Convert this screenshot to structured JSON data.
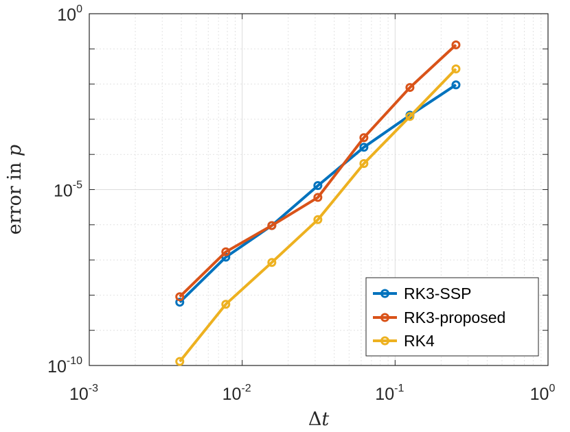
{
  "chart_data": {
    "type": "line",
    "xscale": "log",
    "yscale": "log",
    "xlim": [
      0.001,
      1
    ],
    "ylim": [
      1e-10,
      1
    ],
    "xlabel_main": "Δ",
    "xlabel_var": "t",
    "ylabel_main": "error in ",
    "ylabel_var": "p",
    "xticks": [
      {
        "value": 0.001,
        "base": "10",
        "exp": "-3"
      },
      {
        "value": 0.01,
        "base": "10",
        "exp": "-2"
      },
      {
        "value": 0.1,
        "base": "10",
        "exp": "-1"
      },
      {
        "value": 1,
        "base": "10",
        "exp": "0"
      }
    ],
    "yticks": [
      {
        "value": 1e-10,
        "base": "10",
        "exp": "-10"
      },
      {
        "value": 1e-05,
        "base": "10",
        "exp": "-5"
      },
      {
        "value": 1,
        "base": "10",
        "exp": "0"
      }
    ],
    "grid": true,
    "minor_grid": true,
    "legend_position": "bottom-right",
    "x": [
      0.00390625,
      0.0078125,
      0.015625,
      0.03125,
      0.0625,
      0.125,
      0.25
    ],
    "series": [
      {
        "name": "RK3-SSP",
        "color": "#0072BD",
        "values": [
          6.3e-09,
          1.2e-07,
          9.5e-07,
          1.3e-05,
          0.00016,
          0.0013,
          0.0095
        ]
      },
      {
        "name": "RK3-proposed",
        "color": "#D95319",
        "values": [
          9e-09,
          1.7e-07,
          9.5e-07,
          6e-06,
          0.0003,
          0.008,
          0.13
        ]
      },
      {
        "name": "RK4",
        "color": "#EDB120",
        "values": [
          1.3e-10,
          5.5e-09,
          8.5e-08,
          1.4e-06,
          5.5e-05,
          0.0012,
          0.027
        ]
      }
    ]
  }
}
